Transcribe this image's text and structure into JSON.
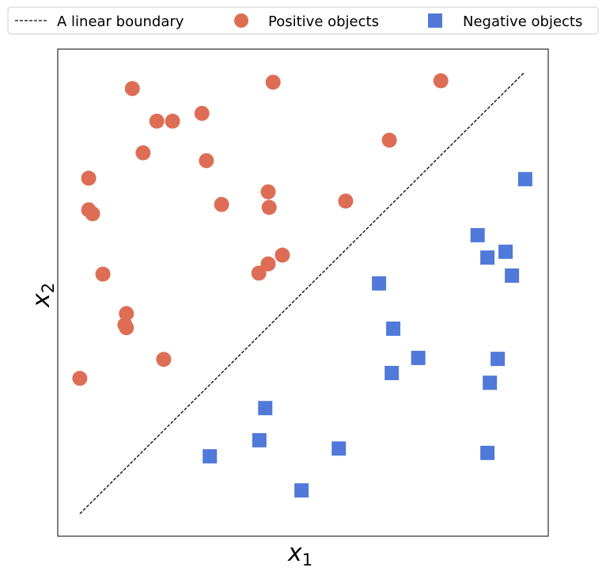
{
  "chart_data": {
    "type": "scatter",
    "title": "",
    "xlabel": "x",
    "xlabel_sub": "1",
    "ylabel": "x",
    "ylabel_sub": "2",
    "xlim": [
      0,
      10
    ],
    "ylim": [
      0,
      10
    ],
    "grid": false,
    "legend_position": "top",
    "colors": {
      "positive": "#dd6e55",
      "negative": "#5079d9",
      "boundary": "#000000"
    },
    "boundary": {
      "name": "A linear boundary",
      "x": [
        0.45,
        9.52
      ],
      "y": [
        0.46,
        9.53
      ]
    },
    "series": [
      {
        "name": "Positive objects",
        "marker": "circle",
        "x": [
          1.52,
          4.39,
          7.81,
          2.02,
          2.34,
          2.94,
          1.74,
          3.03,
          6.76,
          0.63,
          4.29,
          3.34,
          4.31,
          5.87,
          0.63,
          0.71,
          4.58,
          4.29,
          4.1,
          0.92,
          1.4,
          1.37,
          1.4,
          2.16,
          0.45
        ],
        "y": [
          9.19,
          9.32,
          9.35,
          8.52,
          8.52,
          8.68,
          7.87,
          7.71,
          8.13,
          7.35,
          7.07,
          6.81,
          6.75,
          6.88,
          6.7,
          6.62,
          5.77,
          5.59,
          5.4,
          5.38,
          4.57,
          4.34,
          4.28,
          3.63,
          3.24
        ]
      },
      {
        "name": "Negative objects",
        "marker": "square",
        "x": [
          9.53,
          8.56,
          9.13,
          8.76,
          9.26,
          6.55,
          6.84,
          7.35,
          8.97,
          6.81,
          8.81,
          4.23,
          4.11,
          3.1,
          5.73,
          8.76,
          4.97
        ],
        "y": [
          7.33,
          6.18,
          5.84,
          5.72,
          5.35,
          5.19,
          4.26,
          3.66,
          3.64,
          3.35,
          3.15,
          2.63,
          1.97,
          1.64,
          1.8,
          1.71,
          0.94
        ]
      }
    ]
  }
}
